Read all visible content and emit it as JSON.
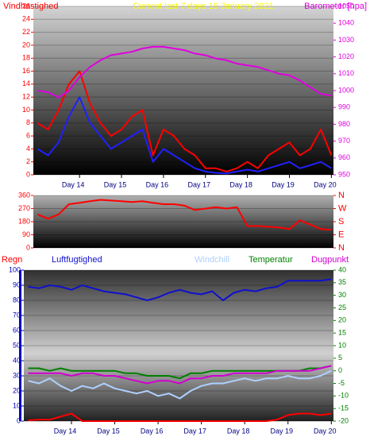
{
  "chart_data": [
    {
      "type": "line",
      "title": "Current last 7 days 19 January 2021",
      "ylabel": "Vindhastighed",
      "y2label": "Barometer [hpa]",
      "title_color": "#ffff00",
      "ycolor": "#ff0000",
      "y2color": "#e000e0",
      "x": [
        13.0,
        13.25,
        13.5,
        13.75,
        14.0,
        14.25,
        14.5,
        14.75,
        15.0,
        15.25,
        15.5,
        15.75,
        16.0,
        16.25,
        16.5,
        16.75,
        17.0,
        17.25,
        17.5,
        17.75,
        18.0,
        18.25,
        18.5,
        18.75,
        19.0,
        19.25,
        19.5,
        19.75,
        20.0
      ],
      "xlim": [
        12.9,
        20.05
      ],
      "xticks": [
        {
          "value": 14,
          "label": "Day 14"
        },
        {
          "value": 15,
          "label": "Day 15"
        },
        {
          "value": 16,
          "label": "Day 16"
        },
        {
          "value": 17,
          "label": "Day 17"
        },
        {
          "value": 18,
          "label": "Day 18"
        },
        {
          "value": 19,
          "label": "Day 19"
        },
        {
          "value": 20,
          "label": "Day 20"
        }
      ],
      "ylim": [
        0,
        26
      ],
      "yticks": [
        0,
        2,
        4,
        6,
        8,
        10,
        12,
        14,
        16,
        18,
        20,
        22,
        24,
        26
      ],
      "y2lim": [
        950,
        1050
      ],
      "y2ticks": [
        950,
        960,
        970,
        980,
        990,
        1000,
        1010,
        1020,
        1030,
        1040,
        1050
      ],
      "grid": true,
      "series": [
        {
          "color": "#ff0000",
          "values": [
            8,
            7,
            10,
            14,
            16,
            11,
            8,
            6,
            7,
            9,
            10,
            3,
            7,
            6,
            4,
            3,
            1,
            1,
            0.5,
            1,
            2,
            1,
            3,
            4,
            5,
            3,
            4,
            7,
            3
          ]
        },
        {
          "color": "#2020ff",
          "values": [
            4,
            3,
            5,
            9,
            12,
            8,
            6,
            4,
            5,
            6,
            7,
            2,
            4,
            3,
            2,
            1,
            0.5,
            0.3,
            0.2,
            0.5,
            0.8,
            0.5,
            1,
            1.5,
            2,
            1,
            1.5,
            2,
            1
          ]
        },
        {
          "color": "#e000e0",
          "axis": "y2",
          "values": [
            1000,
            999,
            996,
            1000,
            1008,
            1014,
            1018,
            1021,
            1022,
            1023,
            1025,
            1026,
            1026,
            1025,
            1024,
            1022,
            1021,
            1019,
            1018,
            1016,
            1015,
            1014,
            1012,
            1010,
            1009,
            1006,
            1002,
            998,
            997
          ]
        }
      ]
    },
    {
      "type": "line",
      "ycolor": "#ff0000",
      "y2color": "#ff0000",
      "x": [
        13.0,
        13.25,
        13.5,
        13.75,
        14.0,
        14.25,
        14.5,
        14.75,
        15.0,
        15.25,
        15.5,
        15.75,
        16.0,
        16.25,
        16.5,
        16.75,
        17.0,
        17.25,
        17.5,
        17.75,
        18.0,
        18.25,
        18.5,
        18.75,
        19.0,
        19.25,
        19.5,
        19.75,
        20.0
      ],
      "xlim": [
        12.9,
        20.05
      ],
      "ylim": [
        0,
        360
      ],
      "yticks": [
        0,
        90,
        180,
        270,
        360
      ],
      "y2lim": [
        0,
        360
      ],
      "y2ticks": [
        {
          "value": 360,
          "label": "N"
        },
        {
          "value": 270,
          "label": "W"
        },
        {
          "value": 180,
          "label": "S"
        },
        {
          "value": 90,
          "label": "E"
        },
        {
          "value": 0,
          "label": "N"
        }
      ],
      "grid": true,
      "series": [
        {
          "color": "#ff0000",
          "values": [
            230,
            200,
            230,
            300,
            310,
            320,
            330,
            325,
            320,
            315,
            320,
            310,
            300,
            300,
            290,
            260,
            270,
            280,
            270,
            280,
            150,
            150,
            145,
            140,
            130,
            190,
            160,
            130,
            125
          ]
        }
      ]
    },
    {
      "type": "line",
      "ycolor": "#0000c0",
      "y2color": "#008000",
      "x": [
        13.0,
        13.25,
        13.5,
        13.75,
        14.0,
        14.25,
        14.5,
        14.75,
        15.0,
        15.25,
        15.5,
        15.75,
        16.0,
        16.25,
        16.5,
        16.75,
        17.0,
        17.25,
        17.5,
        17.75,
        18.0,
        18.25,
        18.5,
        18.75,
        19.0,
        19.25,
        19.5,
        19.75,
        20.0
      ],
      "xlim": [
        12.9,
        20.05
      ],
      "xticks": [
        {
          "value": 14,
          "label": "Day 14"
        },
        {
          "value": 15,
          "label": "Day 15"
        },
        {
          "value": 16,
          "label": "Day 16"
        },
        {
          "value": 17,
          "label": "Day 17"
        },
        {
          "value": 18,
          "label": "Day 18"
        },
        {
          "value": 19,
          "label": "Day 19"
        },
        {
          "value": 20,
          "label": "Day 20"
        }
      ],
      "ylim": [
        0,
        100
      ],
      "yticks": [
        0,
        10,
        20,
        30,
        40,
        50,
        60,
        70,
        80,
        90,
        100
      ],
      "y2lim": [
        -20,
        40
      ],
      "y2ticks": [
        -20,
        -15,
        -10,
        -5,
        0,
        5,
        10,
        15,
        20,
        25,
        30,
        35,
        40
      ],
      "grid": true,
      "series": [
        {
          "name": "Regn",
          "color": "#ff0000",
          "values": [
            0.5,
            1,
            1,
            3,
            5,
            0,
            0,
            0,
            0,
            0,
            0,
            0,
            0,
            0,
            0,
            0,
            0,
            0,
            0,
            0,
            0,
            0,
            0,
            1,
            4,
            5,
            5,
            4,
            5
          ]
        },
        {
          "name": "Luftfugtighed",
          "color": "#1010d0",
          "values": [
            89,
            88,
            90,
            89,
            87,
            90,
            88,
            86,
            85,
            84,
            82,
            80,
            82,
            85,
            87,
            85,
            84,
            86,
            80,
            85,
            87,
            86,
            88,
            89,
            93,
            93,
            93,
            93,
            94
          ]
        },
        {
          "name": "Windchill",
          "color": "#b0d0ff",
          "axis": "y2",
          "values": [
            -4,
            -5,
            -3,
            -6,
            -8,
            -6,
            -7,
            -5,
            -7,
            -8,
            -9,
            -8,
            -10,
            -9,
            -11,
            -8,
            -6,
            -5,
            -5,
            -4,
            -3,
            -4,
            -3,
            -3,
            -2,
            -3,
            -3,
            -2,
            0
          ]
        },
        {
          "name": "Temperatur",
          "color": "#008000",
          "axis": "y2",
          "values": [
            1,
            1,
            0,
            1,
            0,
            0,
            0,
            0,
            0,
            -1,
            -1,
            -2,
            -2,
            -2,
            -3,
            -1,
            -1,
            0,
            0,
            0,
            0,
            0,
            0,
            0,
            0,
            0,
            1,
            1,
            2
          ]
        },
        {
          "name": "Dugpunkt",
          "color": "#d000d0",
          "axis": "y2",
          "values": [
            -1,
            -1,
            -1,
            -1,
            -2,
            -1,
            -1,
            -2,
            -2,
            -3,
            -4,
            -5,
            -4,
            -4,
            -5,
            -3,
            -3,
            -2,
            -2,
            -1,
            -1,
            -1,
            -1,
            0,
            0,
            0,
            0,
            1,
            2
          ]
        }
      ]
    }
  ]
}
